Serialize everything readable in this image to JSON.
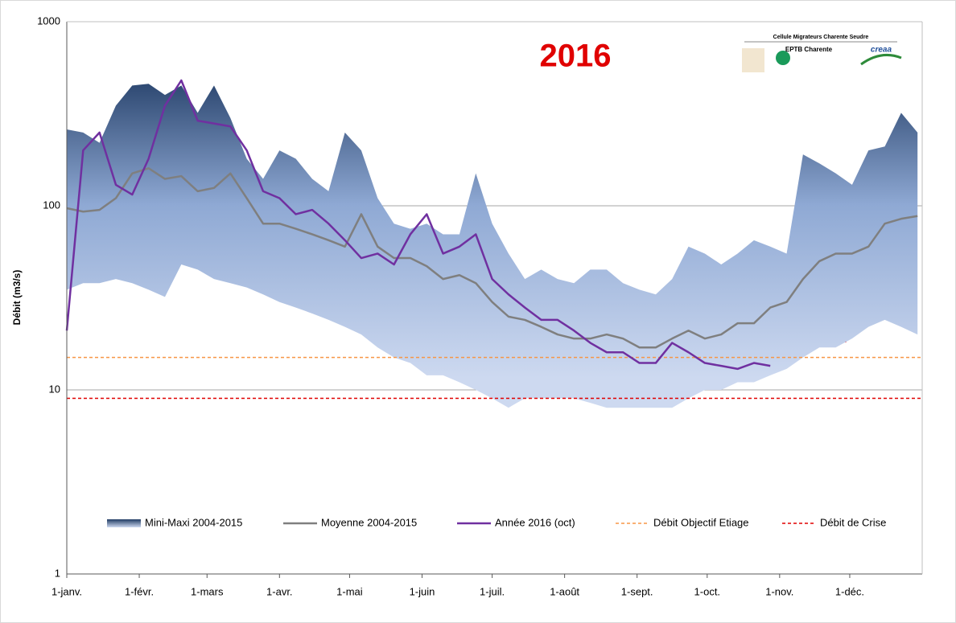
{
  "chart_data": {
    "type": "line",
    "title": "2016",
    "annotation": "?",
    "ylabel": "Débit (m3/s)",
    "logo": {
      "line1": "Cellule Migrateurs Charente Seudre",
      "line2": "EPTB Charente",
      "line3": "creaa"
    },
    "log_scale": true,
    "grid": true,
    "legend": "bottom",
    "x": [
      0,
      7,
      14,
      21,
      28,
      35,
      42,
      49,
      56,
      63,
      70,
      77,
      84,
      91,
      98,
      105,
      112,
      119,
      126,
      133,
      140,
      147,
      154,
      161,
      168,
      175,
      182,
      189,
      196,
      203,
      210,
      217,
      224,
      231,
      238,
      245,
      252,
      259,
      266,
      273,
      280,
      287,
      294,
      301,
      308,
      315,
      322,
      329,
      336,
      343,
      350,
      357,
      364
    ],
    "xlim": [
      0,
      366
    ],
    "xticks": [
      {
        "value": 0,
        "label": "1-janv."
      },
      {
        "value": 31,
        "label": "1-févr."
      },
      {
        "value": 60,
        "label": "1-mars"
      },
      {
        "value": 91,
        "label": "1-avr."
      },
      {
        "value": 121,
        "label": "1-mai"
      },
      {
        "value": 152,
        "label": "1-juin"
      },
      {
        "value": 182,
        "label": "1-juil."
      },
      {
        "value": 213,
        "label": "1-août"
      },
      {
        "value": 244,
        "label": "1-sept."
      },
      {
        "value": 274,
        "label": "1-oct."
      },
      {
        "value": 305,
        "label": "1-nov."
      },
      {
        "value": 335,
        "label": "1-déc."
      }
    ],
    "ylim": [
      1,
      1000
    ],
    "yticks": [
      1,
      10,
      100,
      1000
    ],
    "series": [
      {
        "name": "Mini-Maxi 2004-2015",
        "kind": "band",
        "color": "#2a4a78",
        "upper": [
          260,
          250,
          220,
          350,
          450,
          460,
          400,
          450,
          320,
          450,
          300,
          180,
          140,
          200,
          180,
          140,
          120,
          250,
          200,
          110,
          80,
          75,
          80,
          70,
          70,
          150,
          80,
          55,
          40,
          45,
          40,
          38,
          45,
          45,
          38,
          35,
          33,
          40,
          60,
          55,
          48,
          55,
          65,
          60,
          55,
          190,
          170,
          150,
          130,
          200,
          210,
          320,
          250
        ],
        "lower": [
          35,
          38,
          38,
          40,
          38,
          35,
          32,
          48,
          45,
          40,
          38,
          36,
          33,
          30,
          28,
          26,
          24,
          22,
          20,
          17,
          15,
          14,
          12,
          12,
          11,
          10,
          9,
          8,
          9,
          9,
          9,
          9,
          8.5,
          8,
          8,
          8,
          8,
          8,
          9,
          10,
          10,
          11,
          11,
          12,
          13,
          15,
          17,
          17,
          19,
          22,
          24,
          22,
          20
        ]
      },
      {
        "name": "Moyenne 2004-2015",
        "kind": "line",
        "color": "#7f7f7f",
        "values": [
          97,
          93,
          95,
          110,
          150,
          160,
          140,
          145,
          120,
          125,
          150,
          110,
          80,
          80,
          75,
          70,
          65,
          60,
          90,
          60,
          52,
          52,
          47,
          40,
          42,
          38,
          30,
          25,
          24,
          22,
          20,
          19,
          19,
          20,
          19,
          17,
          17,
          19,
          21,
          19,
          20,
          23,
          23,
          28,
          30,
          40,
          50,
          55,
          55,
          60,
          80,
          85,
          88
        ]
      },
      {
        "name": "Année 2016 (oct)",
        "kind": "line",
        "color": "#7030a0",
        "values": [
          21,
          200,
          250,
          130,
          115,
          180,
          350,
          480,
          290,
          280,
          270,
          200,
          120,
          110,
          90,
          95,
          80,
          65,
          52,
          55,
          48,
          70,
          90,
          55,
          60,
          70,
          40,
          33,
          28,
          24,
          24,
          21,
          18,
          16,
          16,
          14,
          14,
          18,
          16,
          14,
          13.5,
          13,
          14,
          13.5,
          null,
          null,
          null,
          null,
          null,
          null,
          null,
          null,
          null
        ]
      }
    ],
    "hlines": [
      {
        "name": "Débit Objectif Etiage",
        "color": "#f79646",
        "value": 15
      },
      {
        "name": "Débit de Crise",
        "color": "#e00000",
        "value": 9
      }
    ]
  }
}
